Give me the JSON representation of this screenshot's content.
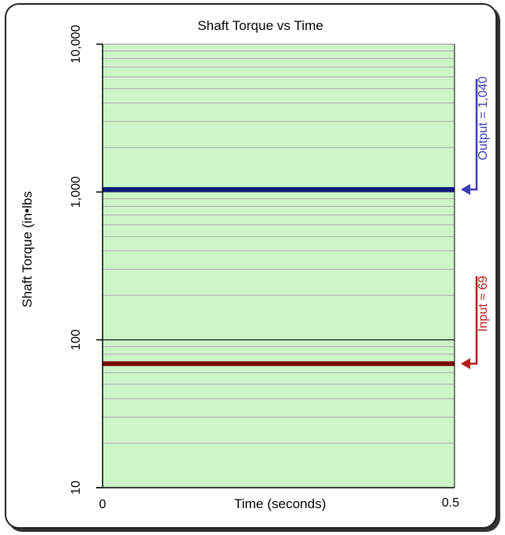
{
  "chart_data": {
    "type": "line",
    "title": "Shaft Torque vs Time",
    "xlabel": "Time (seconds)",
    "ylabel": "Shaft Torque (in•lbs",
    "x_ticks": [
      "0",
      "0.5"
    ],
    "xlim": [
      0,
      0.5
    ],
    "y_scale": "log",
    "ylim": [
      10,
      10000
    ],
    "y_ticks": [
      {
        "value": 10,
        "label": "10"
      },
      {
        "value": 100,
        "label": "100"
      },
      {
        "value": 1000,
        "label": "1,000"
      },
      {
        "value": 10000,
        "label": "10,000"
      }
    ],
    "grid": true,
    "background_color": "#ccf5c8",
    "series": [
      {
        "name": "Output",
        "x": [
          0,
          0.5
        ],
        "values": [
          1040,
          1040
        ],
        "color": "#0b1a7a",
        "annotation": "Output = 1,040",
        "annotation_color": "#3c3cb4"
      },
      {
        "name": "Input",
        "x": [
          0,
          0.5
        ],
        "values": [
          69,
          69
        ],
        "color": "#7a0a0a",
        "annotation": "Input ≈ 69",
        "annotation_color": "#b41e1e"
      }
    ]
  }
}
